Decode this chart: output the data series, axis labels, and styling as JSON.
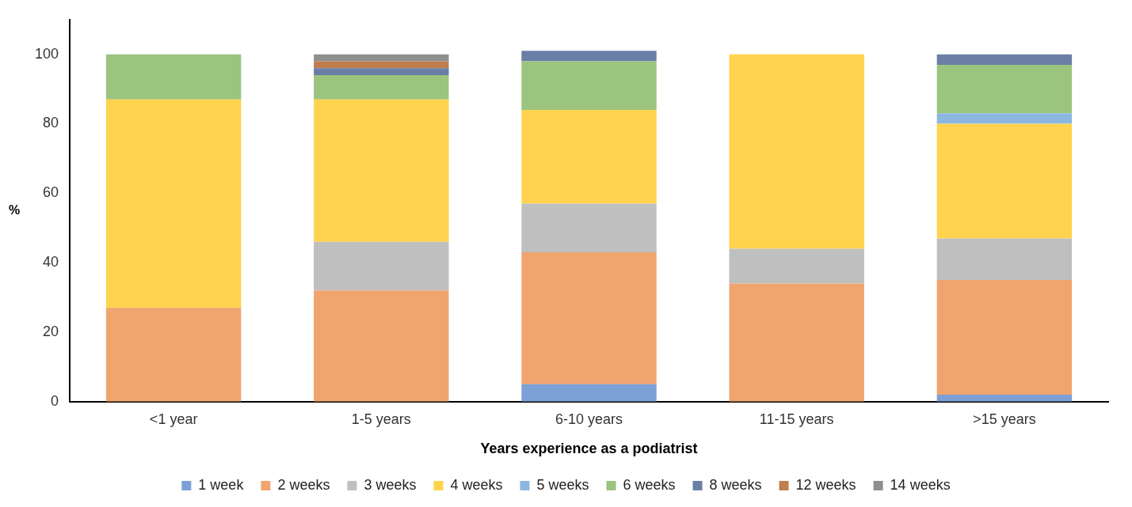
{
  "chart_data": {
    "type": "bar",
    "stacked": true,
    "xlabel": "Years experience as a podiatrist",
    "ylabel": "%",
    "categories": [
      "<1 year",
      "1-5 years",
      "6-10 years",
      "11-15 years",
      ">15 years"
    ],
    "series": [
      {
        "name": "1 week",
        "color": "#7da0d6",
        "values": [
          0,
          0,
          5,
          0,
          2
        ]
      },
      {
        "name": "2 weeks",
        "color": "#f0a46e",
        "values": [
          27,
          32,
          38,
          34,
          33
        ]
      },
      {
        "name": "3 weeks",
        "color": "#bfbfbf",
        "values": [
          0,
          14,
          14,
          10,
          12
        ]
      },
      {
        "name": "4 weeks",
        "color": "#ffd34e",
        "values": [
          60,
          41,
          27,
          56,
          33
        ]
      },
      {
        "name": "5 weeks",
        "color": "#8cb8e0",
        "values": [
          0,
          0,
          0,
          0,
          3
        ]
      },
      {
        "name": "6 weeks",
        "color": "#9bc47e",
        "values": [
          13,
          7,
          14,
          0,
          14
        ]
      },
      {
        "name": "8 weeks",
        "color": "#6a7ea6",
        "values": [
          0,
          2,
          3,
          0,
          3
        ]
      },
      {
        "name": "12 weeks",
        "color": "#c07d4f",
        "values": [
          0,
          2,
          0,
          0,
          0
        ]
      },
      {
        "name": "14 weeks",
        "color": "#8f8f8f",
        "values": [
          0,
          2,
          0,
          0,
          0
        ]
      }
    ],
    "ylim": [
      0,
      110
    ],
    "yticks": [
      0,
      20,
      40,
      60,
      80,
      100
    ],
    "grid": false,
    "legend": "bottom"
  }
}
